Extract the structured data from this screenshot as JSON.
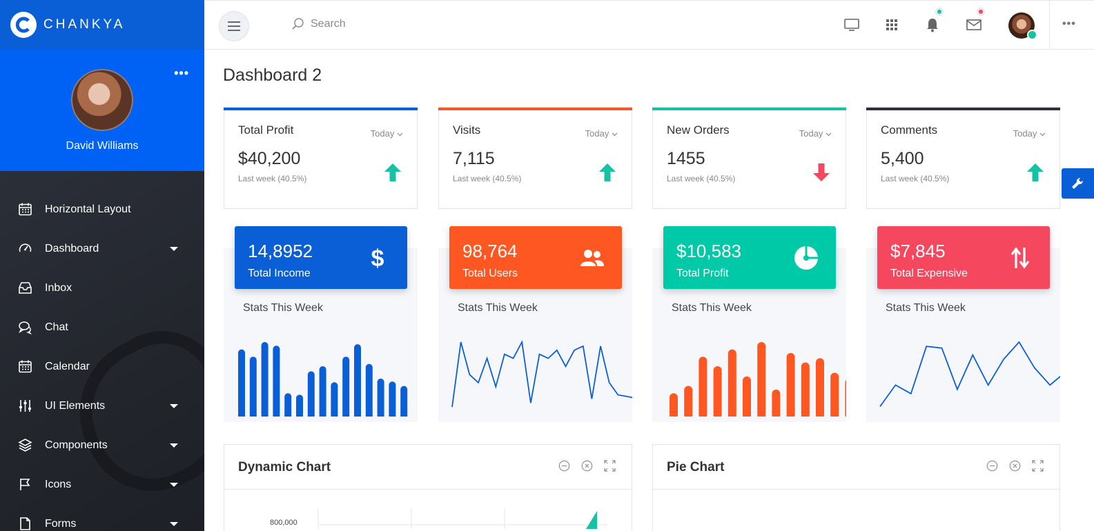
{
  "brand": {
    "name": "CHANKYA"
  },
  "profile": {
    "name": "David Williams",
    "menu": "•••"
  },
  "nav": [
    {
      "label": "Horizontal Layout",
      "icon": "calendar-icon",
      "has_submenu": false
    },
    {
      "label": "Dashboard",
      "icon": "gauge-icon",
      "has_submenu": true
    },
    {
      "label": "Inbox",
      "icon": "inbox-icon",
      "has_submenu": false
    },
    {
      "label": "Chat",
      "icon": "chat-icon",
      "has_submenu": false
    },
    {
      "label": "Calendar",
      "icon": "calendar-icon",
      "has_submenu": false
    },
    {
      "label": "UI Elements",
      "icon": "sliders-icon",
      "has_submenu": true
    },
    {
      "label": "Components",
      "icon": "layers-icon",
      "has_submenu": true
    },
    {
      "label": "Icons",
      "icon": "flag-icon",
      "has_submenu": true
    },
    {
      "label": "Forms",
      "icon": "file-icon",
      "has_submenu": true
    }
  ],
  "topbar": {
    "search_placeholder": "Search",
    "more": "•••",
    "notification_dot_color": "#16c2a3",
    "mail_dot_color": "#f5475e"
  },
  "page": {
    "title": "Dashboard 2"
  },
  "stat_cards": [
    {
      "label": "Total Profit",
      "period": "Today",
      "value": "$40,200",
      "sub": "Last week (40.5%)",
      "trend": "up",
      "accent": "#0a5fd6"
    },
    {
      "label": "Visits",
      "period": "Today",
      "value": "7,115",
      "sub": "Last week (40.5%)",
      "trend": "up",
      "accent": "#f0592b"
    },
    {
      "label": "New Orders",
      "period": "Today",
      "value": "1455",
      "sub": "Last week (40.5%)",
      "trend": "down",
      "accent": "#16c2a3"
    },
    {
      "label": "Comments",
      "period": "Today",
      "value": "5,400",
      "sub": "Last week (40.5%)",
      "trend": "up",
      "accent": "#2f3238"
    }
  ],
  "mini_cards": [
    {
      "value": "14,8952",
      "label": "Total Income",
      "icon": "dollar-icon",
      "color": "#0a5fd6",
      "stats_label": "Stats This Week"
    },
    {
      "value": "98,764",
      "label": "Total Users",
      "icon": "users-icon",
      "color": "#ff5722",
      "stats_label": "Stats This Week"
    },
    {
      "value": "$10,583",
      "label": "Total Profit",
      "icon": "pie-icon",
      "color": "#00c9a7",
      "stats_label": "Stats This Week"
    },
    {
      "value": "$7,845",
      "label": "Total Expensive",
      "icon": "swap-icon",
      "color": "#f5475e",
      "stats_label": "Stats This Week"
    }
  ],
  "chart_data": [
    {
      "type": "bar",
      "color": "#0a5fd6",
      "values": [
        9,
        8,
        10,
        9.5,
        3,
        2.8,
        6,
        6.7,
        4.5,
        8,
        9.7,
        7,
        5,
        4.6,
        4
      ]
    },
    {
      "type": "line",
      "color": "#0a5fd6",
      "values": [
        1,
        9,
        5,
        4,
        7,
        3.5,
        7.5,
        7,
        9,
        1.5,
        7.5,
        7,
        8,
        6,
        8,
        8.5,
        2,
        8.5,
        4,
        2.5,
        2.3,
        2.1,
        3,
        6
      ]
    },
    {
      "type": "bar",
      "color": "#ff5722",
      "values": [
        3,
        4,
        8,
        6.7,
        9,
        5.3,
        10,
        3.5,
        8.5,
        7.2,
        7.8,
        5.8,
        5
      ]
    },
    {
      "type": "line",
      "color": "#0a5fd6",
      "values": [
        1,
        3.5,
        2.5,
        8,
        7.8,
        3,
        7,
        3.5,
        6.5,
        8.5,
        5.5,
        3.5,
        5,
        4.6
      ]
    }
  ],
  "panels": [
    {
      "title": "Dynamic Chart",
      "axis_label": "800,000"
    },
    {
      "title": "Pie Chart"
    }
  ]
}
